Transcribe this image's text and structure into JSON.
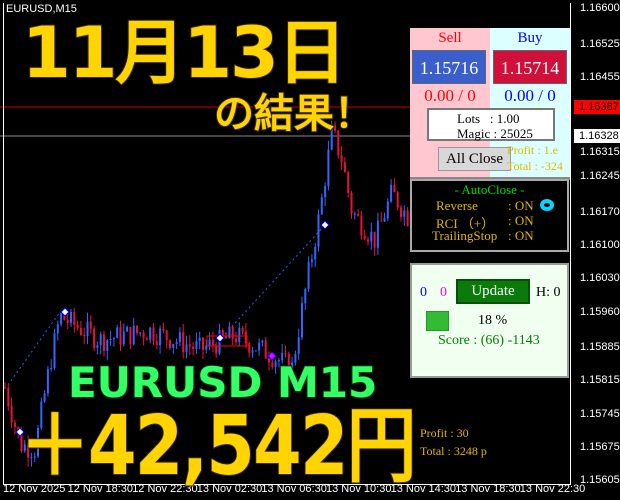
{
  "window": {
    "title": "EURUSD,M15"
  },
  "overlay": {
    "date": "11月13日",
    "subtitle": "の結果！",
    "pair": "EURUSD M15",
    "result": "＋42,542円"
  },
  "price_axis": {
    "labels": [
      "1.16600",
      "1.16525",
      "1.16455",
      "1.16315",
      "1.16245",
      "1.16170",
      "1.16100",
      "1.16030",
      "1.15960",
      "1.15885",
      "1.15815",
      "1.15745",
      "1.15675",
      "1.15605"
    ],
    "bid_label": "1.16387",
    "ask_label": "1.16328",
    "bid_color": "#ff0000"
  },
  "time_axis": {
    "labels": [
      "12 Nov 2025",
      "12 Nov 18:30",
      "12 Nov 22:30",
      "13 Nov 02:30",
      "13 Nov 06:30",
      "13 Nov 10:30",
      "13 Nov 14:30",
      "13 Nov 18:30",
      "13 Nov 22:30"
    ]
  },
  "chart_labels": {
    "profit_low": "Profit : 30",
    "total_low": "Total : 3248 p",
    "profit_high": "Profit : 1.e",
    "total_high": "Total : -324"
  },
  "trade_panel": {
    "sell_title": "Sell",
    "buy_title": "Buy",
    "sell_price": "1.15716",
    "buy_price": "1.15714",
    "sell_pl": "0.00 / 0",
    "buy_pl": "0.00 / 0",
    "lots": "Lots   : 1.00",
    "magic": "Magic : 25025",
    "all_close": "All Close",
    "sell_color": "#3a5fcd",
    "buy_color": "#d0103a"
  },
  "autoclose_panel": {
    "title": "- AutoClose -",
    "rows": [
      {
        "label": "Reverse",
        "value": ": ON"
      },
      {
        "label": "RCI （+）",
        "value": ": ON"
      },
      {
        "label": "TrailingStop",
        "value": ": ON"
      }
    ]
  },
  "score_panel": {
    "count_blue": "0",
    "count_magenta": "0",
    "update": "Update",
    "h": "H: 0",
    "percent": "18 %",
    "progress": 0.18,
    "score": "Score : (66) -1143"
  },
  "colors": {
    "up_candle": "#3366ff",
    "down_candle": "#e8103c",
    "accent_yellow": "#ffd400",
    "accent_green": "#33ff66"
  }
}
